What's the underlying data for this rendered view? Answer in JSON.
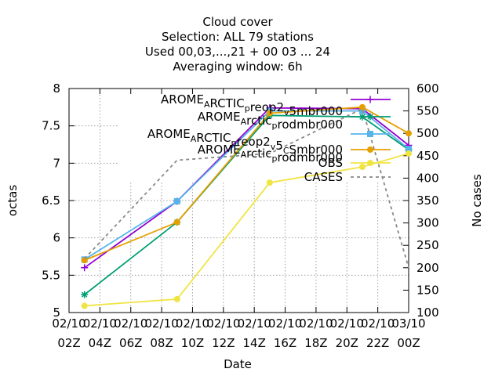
{
  "chart_data": {
    "type": "line",
    "title_lines": [
      "Cloud cover",
      "Selection: ALL      79 stations",
      "Used  00,03,...,21  + 00 03 ... 24",
      "Averaging window:  6h"
    ],
    "xlabel": "Date",
    "ylabel": "octas",
    "y2label": "No cases",
    "ylim": [
      5,
      8
    ],
    "y2lim": [
      100,
      600
    ],
    "xlim": [
      2,
      24
    ],
    "x_ticks": [
      {
        "x": 2,
        "top": "02/10",
        "bottom": "02Z"
      },
      {
        "x": 4,
        "top": "02/10",
        "bottom": "04Z"
      },
      {
        "x": 6,
        "top": "02/10",
        "bottom": "06Z"
      },
      {
        "x": 8,
        "top": "02/10",
        "bottom": "08Z"
      },
      {
        "x": 10,
        "top": "02/10",
        "bottom": "10Z"
      },
      {
        "x": 12,
        "top": "02/10",
        "bottom": "12Z"
      },
      {
        "x": 14,
        "top": "02/10",
        "bottom": "14Z"
      },
      {
        "x": 16,
        "top": "02/10",
        "bottom": "16Z"
      },
      {
        "x": 18,
        "top": "02/10",
        "bottom": "18Z"
      },
      {
        "x": 20,
        "top": "02/10",
        "bottom": "20Z"
      },
      {
        "x": 22,
        "top": "02/10",
        "bottom": "22Z"
      },
      {
        "x": 24,
        "top": "03/10",
        "bottom": "00Z"
      }
    ],
    "y_ticks": [
      {
        "v": 5,
        "label": "5"
      },
      {
        "v": 5.5,
        "label": "5.5"
      },
      {
        "v": 6,
        "label": "6"
      },
      {
        "v": 6.5,
        "label": "6.5"
      },
      {
        "v": 7,
        "label": "7"
      },
      {
        "v": 7.5,
        "label": "7.5"
      },
      {
        "v": 8,
        "label": "8"
      }
    ],
    "y2_ticks": [
      {
        "v": 100,
        "label": "100"
      },
      {
        "v": 150,
        "label": "150"
      },
      {
        "v": 200,
        "label": "200"
      },
      {
        "v": 250,
        "label": "250"
      },
      {
        "v": 300,
        "label": "300"
      },
      {
        "v": 350,
        "label": "350"
      },
      {
        "v": 400,
        "label": "400"
      },
      {
        "v": 450,
        "label": "450"
      },
      {
        "v": 500,
        "label": "500"
      },
      {
        "v": 550,
        "label": "550"
      },
      {
        "v": 600,
        "label": "600"
      }
    ],
    "grid": true,
    "legend_position": "top-right",
    "series": [
      {
        "name": "AROME_ARCTIC_preop2_v5mbr000",
        "legend_parts": [
          [
            "AROME",
            ""
          ],
          [
            "A",
            "sub"
          ],
          [
            "RCTIC",
            ""
          ],
          [
            "p",
            "sub"
          ],
          [
            "reop2",
            ""
          ],
          [
            "v",
            "sub"
          ],
          [
            "5mbr000",
            ""
          ]
        ],
        "color": "#9400d3",
        "marker": "plus",
        "axis": "y",
        "x": [
          3,
          9,
          15,
          21,
          24
        ],
        "y": [
          5.6,
          6.49,
          7.74,
          7.73,
          7.24
        ]
      },
      {
        "name": "AROME_Arctic_prodmbr000_preop2",
        "legend_parts": [
          [
            "AROME",
            ""
          ],
          [
            "A",
            "sub"
          ],
          [
            "rctic",
            ""
          ],
          [
            "p",
            "sub"
          ],
          [
            "rodmbr000",
            ""
          ]
        ],
        "color": "#009e73",
        "marker": "star",
        "axis": "y",
        "x": [
          3,
          9,
          15,
          21,
          24
        ],
        "y": [
          5.24,
          6.21,
          7.64,
          7.62,
          7.18
        ]
      },
      {
        "name": "AROME_ARCTIC_preop2_v5_CSmbr000",
        "legend_parts": [
          [
            "AROME",
            ""
          ],
          [
            "A",
            "sub"
          ],
          [
            "RCTIC",
            ""
          ],
          [
            "p",
            "sub"
          ],
          [
            "reop2",
            ""
          ],
          [
            "v",
            "sub"
          ],
          [
            "5",
            ""
          ],
          [
            "C",
            "sub"
          ],
          [
            "Smbr000",
            ""
          ]
        ],
        "color": "#56b4e9",
        "marker": "box",
        "axis": "y",
        "x": [
          3,
          9,
          15,
          21,
          24
        ],
        "y": [
          5.71,
          6.49,
          7.7,
          7.7,
          7.19
        ]
      },
      {
        "name": "AROME_Arctic_prodmbr000",
        "legend_parts": [
          [
            "AROME",
            ""
          ],
          [
            "A",
            "sub"
          ],
          [
            "rctic",
            ""
          ],
          [
            "p",
            "sub"
          ],
          [
            "rodmbr000",
            ""
          ]
        ],
        "color": "#e69f00",
        "marker": "circle",
        "axis": "y",
        "x": [
          3,
          9,
          15,
          21,
          24
        ],
        "y": [
          5.7,
          6.21,
          7.67,
          7.75,
          7.4
        ]
      },
      {
        "name": "OBS",
        "legend_parts": [
          [
            "OBS",
            ""
          ]
        ],
        "color": "#f0e442",
        "marker": "circle",
        "axis": "y",
        "x": [
          3,
          9,
          15,
          21,
          24
        ],
        "y": [
          5.09,
          5.18,
          6.74,
          6.95,
          7.13
        ]
      },
      {
        "name": "CASES",
        "legend_parts": [
          [
            "CASES",
            ""
          ]
        ],
        "color": "#888888",
        "marker": "none",
        "dashed": true,
        "axis": "y2",
        "x": [
          3,
          9,
          15,
          21,
          24
        ],
        "y": [
          220,
          440,
          455,
          555,
          200
        ]
      }
    ]
  }
}
